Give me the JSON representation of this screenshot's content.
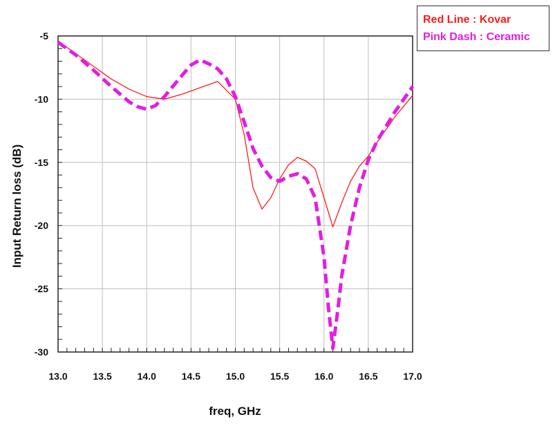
{
  "colors": {
    "kovar": "#ff1a1a",
    "ceramic": "#e21ee2",
    "grid": "#bdbdbd",
    "axis": "#222222"
  },
  "legend": {
    "entries": [
      {
        "label": "Red Line : Kovar",
        "color": "#ff1a1a"
      },
      {
        "label": "Pink Dash : Ceramic",
        "color": "#e21ee2"
      }
    ]
  },
  "chart_data": {
    "type": "line",
    "title": "",
    "xlabel": "freq, GHz",
    "ylabel": "Input Return loss (dB)",
    "xlim": [
      13.0,
      17.0
    ],
    "ylim": [
      -30,
      -5
    ],
    "xticks": [
      "13.0",
      "13.5",
      "14.0",
      "14.5",
      "15.0",
      "15.5",
      "16.0",
      "16.5",
      "17.0"
    ],
    "yticks": [
      "-5",
      "-10",
      "-15",
      "-20",
      "-25",
      "-30"
    ],
    "grid": true,
    "legend_position": "top-right",
    "series": [
      {
        "name": "Red Line : Kovar",
        "style": "solid",
        "x": [
          13.0,
          13.2,
          13.4,
          13.6,
          13.8,
          14.0,
          14.2,
          14.4,
          14.6,
          14.8,
          15.0,
          15.1,
          15.2,
          15.3,
          15.4,
          15.5,
          15.6,
          15.7,
          15.8,
          15.9,
          16.0,
          16.1,
          16.2,
          16.3,
          16.4,
          16.5,
          16.6,
          16.8,
          17.0
        ],
        "y": [
          -5.4,
          -6.4,
          -7.4,
          -8.4,
          -9.2,
          -9.8,
          -10.0,
          -9.6,
          -9.1,
          -8.6,
          -10.0,
          -12.8,
          -17.0,
          -18.7,
          -17.8,
          -16.3,
          -15.2,
          -14.6,
          -14.9,
          -15.5,
          -17.8,
          -20.1,
          -18.2,
          -16.5,
          -15.3,
          -14.5,
          -13.4,
          -11.4,
          -9.7
        ]
      },
      {
        "name": "Pink Dash : Ceramic",
        "style": "dashed",
        "x": [
          13.0,
          13.2,
          13.4,
          13.6,
          13.8,
          13.9,
          14.0,
          14.1,
          14.2,
          14.4,
          14.5,
          14.6,
          14.7,
          14.8,
          14.9,
          15.0,
          15.1,
          15.2,
          15.3,
          15.4,
          15.5,
          15.6,
          15.7,
          15.8,
          15.9,
          16.0,
          16.05,
          16.1,
          16.15,
          16.2,
          16.3,
          16.4,
          16.5,
          16.6,
          16.8,
          17.0
        ],
        "y": [
          -5.5,
          -6.5,
          -7.7,
          -9.0,
          -10.2,
          -10.6,
          -10.8,
          -10.5,
          -9.8,
          -8.1,
          -7.3,
          -6.9,
          -7.2,
          -7.6,
          -8.4,
          -9.8,
          -11.8,
          -13.9,
          -15.3,
          -16.2,
          -16.5,
          -16.1,
          -15.9,
          -16.3,
          -17.8,
          -22.5,
          -26.5,
          -29.7,
          -27.0,
          -24.0,
          -20.0,
          -17.0,
          -14.8,
          -13.3,
          -11.0,
          -9.0
        ]
      }
    ]
  }
}
